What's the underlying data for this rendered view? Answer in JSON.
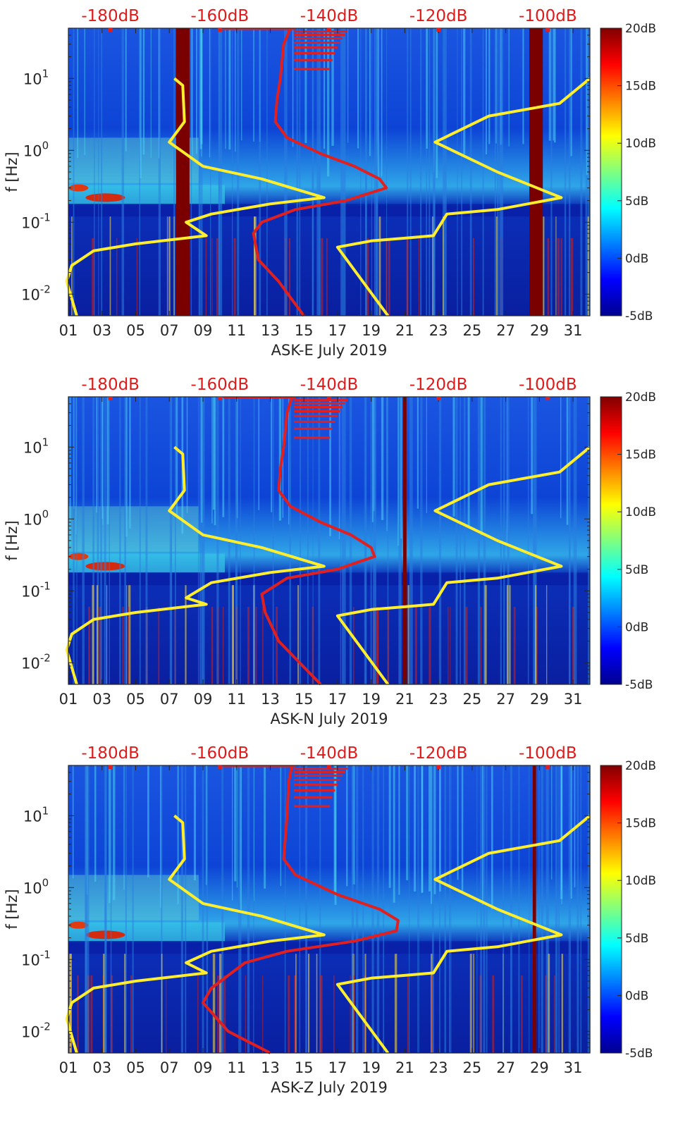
{
  "figure": {
    "colors": {
      "background": "#0a3cc8",
      "frame": "#262626",
      "model_curve": "#ffee2e",
      "noise_curve": "#e02020",
      "top_axis_text": "#e01a1a",
      "data_gap": "#7a0000"
    }
  },
  "chart_data": [
    {
      "type": "heatmap",
      "title": "",
      "xlabel": "ASK-E July 2019",
      "ylabel": "f [Hz]",
      "xlim": [
        1,
        32
      ],
      "ylim_hz": [
        0.005,
        50
      ],
      "yscale": "log",
      "x_ticks": [
        "01",
        "03",
        "05",
        "07",
        "09",
        "11",
        "13",
        "15",
        "17",
        "19",
        "21",
        "23",
        "25",
        "27",
        "29",
        "31"
      ],
      "y_ticks": [
        {
          "value": 0.01,
          "base": "10",
          "exp": "-2"
        },
        {
          "value": 0.1,
          "base": "10",
          "exp": "-1"
        },
        {
          "value": 1,
          "base": "10",
          "exp": "0"
        },
        {
          "value": 10,
          "base": "10",
          "exp": "1"
        }
      ],
      "top_axis_labels": [
        "-180dB",
        "-160dB",
        "-140dB",
        "-120dB",
        "-100dB"
      ],
      "colorbar": {
        "range_db": [
          -5,
          20
        ],
        "ticks": [
          "20dB",
          "15dB",
          "10dB",
          "5dB",
          "0dB",
          "-5dB"
        ]
      },
      "data_gaps_days": [
        [
          7.4,
          8.2
        ],
        [
          28.4,
          29.2
        ]
      ],
      "yellow_curve": [
        [
          7.3,
          10
        ],
        [
          7.8,
          8
        ],
        [
          7.9,
          2.5
        ],
        [
          7.0,
          1.3
        ],
        [
          9.0,
          0.6
        ],
        [
          12.5,
          0.4
        ],
        [
          16.2,
          0.22
        ],
        [
          13.0,
          0.18
        ],
        [
          9.5,
          0.13
        ],
        [
          8.0,
          0.1
        ],
        [
          9.2,
          0.065
        ],
        [
          5.0,
          0.05
        ],
        [
          2.5,
          0.04
        ],
        [
          1.2,
          0.025
        ],
        [
          0.9,
          0.015
        ],
        [
          1.5,
          0.005
        ]
      ],
      "yellow_curve_right": [
        [
          32,
          10
        ],
        [
          30.2,
          4.5
        ],
        [
          26.0,
          3.0
        ],
        [
          22.8,
          1.3
        ],
        [
          26.5,
          0.5
        ],
        [
          30.3,
          0.22
        ],
        [
          26.5,
          0.15
        ],
        [
          23.5,
          0.13
        ],
        [
          22.7,
          0.065
        ],
        [
          21.0,
          0.06
        ],
        [
          19.0,
          0.055
        ],
        [
          17.0,
          0.045
        ],
        [
          20.0,
          0.005
        ]
      ],
      "red_curve": [
        [
          14.2,
          50
        ],
        [
          13.8,
          30
        ],
        [
          13.6,
          10
        ],
        [
          13.4,
          5
        ],
        [
          13.3,
          2.5
        ],
        [
          14.0,
          1.5
        ],
        [
          16.0,
          0.9
        ],
        [
          18.0,
          0.6
        ],
        [
          19.5,
          0.4
        ],
        [
          19.9,
          0.3
        ],
        [
          17.5,
          0.2
        ],
        [
          14.5,
          0.15
        ],
        [
          12.5,
          0.1
        ],
        [
          12.0,
          0.07
        ],
        [
          12.3,
          0.03
        ],
        [
          13.5,
          0.015
        ],
        [
          15.0,
          0.005
        ]
      ]
    },
    {
      "type": "heatmap",
      "title": "",
      "xlabel": "ASK-N July 2019",
      "ylabel": "f [Hz]",
      "xlim": [
        1,
        32
      ],
      "ylim_hz": [
        0.005,
        50
      ],
      "yscale": "log",
      "x_ticks": [
        "01",
        "03",
        "05",
        "07",
        "09",
        "11",
        "13",
        "15",
        "17",
        "19",
        "21",
        "23",
        "25",
        "27",
        "29",
        "31"
      ],
      "y_ticks": [
        {
          "value": 0.01,
          "base": "10",
          "exp": "-2"
        },
        {
          "value": 0.1,
          "base": "10",
          "exp": "-1"
        },
        {
          "value": 1,
          "base": "10",
          "exp": "0"
        },
        {
          "value": 10,
          "base": "10",
          "exp": "1"
        }
      ],
      "top_axis_labels": [
        "-180dB",
        "-160dB",
        "-140dB",
        "-120dB",
        "-100dB"
      ],
      "colorbar": {
        "range_db": [
          -5,
          20
        ],
        "ticks": [
          "20dB",
          "15dB",
          "10dB",
          "5dB",
          "0dB",
          "-5dB"
        ]
      },
      "data_gaps_days": [
        [
          20.9,
          21.1
        ]
      ],
      "yellow_curve": [
        [
          7.3,
          10
        ],
        [
          7.8,
          8
        ],
        [
          7.9,
          2.5
        ],
        [
          7.0,
          1.3
        ],
        [
          9.0,
          0.6
        ],
        [
          12.5,
          0.4
        ],
        [
          16.2,
          0.22
        ],
        [
          13.0,
          0.18
        ],
        [
          9.5,
          0.13
        ],
        [
          8.0,
          0.08
        ],
        [
          9.2,
          0.065
        ],
        [
          5.0,
          0.05
        ],
        [
          2.5,
          0.04
        ],
        [
          1.2,
          0.025
        ],
        [
          0.9,
          0.015
        ],
        [
          1.5,
          0.005
        ]
      ],
      "yellow_curve_right": [
        [
          32,
          10
        ],
        [
          30.2,
          4.5
        ],
        [
          26.0,
          3.0
        ],
        [
          22.8,
          1.3
        ],
        [
          26.5,
          0.5
        ],
        [
          30.3,
          0.22
        ],
        [
          26.5,
          0.15
        ],
        [
          23.5,
          0.13
        ],
        [
          22.7,
          0.065
        ],
        [
          21.0,
          0.06
        ],
        [
          19.0,
          0.055
        ],
        [
          17.0,
          0.045
        ],
        [
          20.0,
          0.005
        ]
      ],
      "red_curve": [
        [
          14.3,
          50
        ],
        [
          14.0,
          30
        ],
        [
          13.8,
          10
        ],
        [
          13.6,
          5
        ],
        [
          13.5,
          2.5
        ],
        [
          14.2,
          1.5
        ],
        [
          16.0,
          0.9
        ],
        [
          17.8,
          0.6
        ],
        [
          19.0,
          0.4
        ],
        [
          19.2,
          0.3
        ],
        [
          17.0,
          0.2
        ],
        [
          14.0,
          0.15
        ],
        [
          12.5,
          0.09
        ],
        [
          12.7,
          0.05
        ],
        [
          13.5,
          0.02
        ],
        [
          16.0,
          0.005
        ]
      ]
    },
    {
      "type": "heatmap",
      "title": "",
      "xlabel": "ASK-Z July 2019",
      "ylabel": "f [Hz]",
      "xlim": [
        1,
        32
      ],
      "ylim_hz": [
        0.005,
        50
      ],
      "yscale": "log",
      "x_ticks": [
        "01",
        "03",
        "05",
        "07",
        "09",
        "11",
        "13",
        "15",
        "17",
        "19",
        "21",
        "23",
        "25",
        "27",
        "29",
        "31"
      ],
      "y_ticks": [
        {
          "value": 0.01,
          "base": "10",
          "exp": "-2"
        },
        {
          "value": 0.1,
          "base": "10",
          "exp": "-1"
        },
        {
          "value": 1,
          "base": "10",
          "exp": "0"
        },
        {
          "value": 10,
          "base": "10",
          "exp": "1"
        }
      ],
      "top_axis_labels": [
        "-180dB",
        "-160dB",
        "-140dB",
        "-120dB",
        "-100dB"
      ],
      "colorbar": {
        "range_db": [
          -5,
          20
        ],
        "ticks": [
          "20dB",
          "15dB",
          "10dB",
          "5dB",
          "0dB",
          "-5dB"
        ]
      },
      "data_gaps_days": [
        [
          28.6,
          28.8
        ]
      ],
      "yellow_curve": [
        [
          7.3,
          10
        ],
        [
          7.8,
          8
        ],
        [
          7.9,
          2.5
        ],
        [
          7.0,
          1.3
        ],
        [
          9.0,
          0.6
        ],
        [
          12.5,
          0.4
        ],
        [
          16.2,
          0.22
        ],
        [
          13.0,
          0.18
        ],
        [
          9.5,
          0.13
        ],
        [
          8.0,
          0.09
        ],
        [
          9.2,
          0.065
        ],
        [
          5.0,
          0.05
        ],
        [
          2.5,
          0.04
        ],
        [
          1.2,
          0.025
        ],
        [
          0.9,
          0.015
        ],
        [
          1.5,
          0.005
        ]
      ],
      "yellow_curve_right": [
        [
          32,
          10
        ],
        [
          30.2,
          4.5
        ],
        [
          26.0,
          3.0
        ],
        [
          22.8,
          1.3
        ],
        [
          26.5,
          0.5
        ],
        [
          30.3,
          0.22
        ],
        [
          26.5,
          0.15
        ],
        [
          23.5,
          0.13
        ],
        [
          22.7,
          0.065
        ],
        [
          21.0,
          0.06
        ],
        [
          19.0,
          0.055
        ],
        [
          17.0,
          0.045
        ],
        [
          20.0,
          0.005
        ]
      ],
      "red_curve": [
        [
          14.3,
          50
        ],
        [
          14.1,
          30
        ],
        [
          14.0,
          10
        ],
        [
          13.9,
          5
        ],
        [
          13.8,
          2.5
        ],
        [
          14.5,
          1.5
        ],
        [
          17.0,
          0.8
        ],
        [
          19.5,
          0.5
        ],
        [
          20.6,
          0.35
        ],
        [
          20.5,
          0.25
        ],
        [
          18.0,
          0.18
        ],
        [
          14.0,
          0.13
        ],
        [
          11.5,
          0.09
        ],
        [
          9.5,
          0.04
        ],
        [
          9.0,
          0.025
        ],
        [
          10.5,
          0.01
        ],
        [
          13.0,
          0.005
        ]
      ]
    }
  ]
}
